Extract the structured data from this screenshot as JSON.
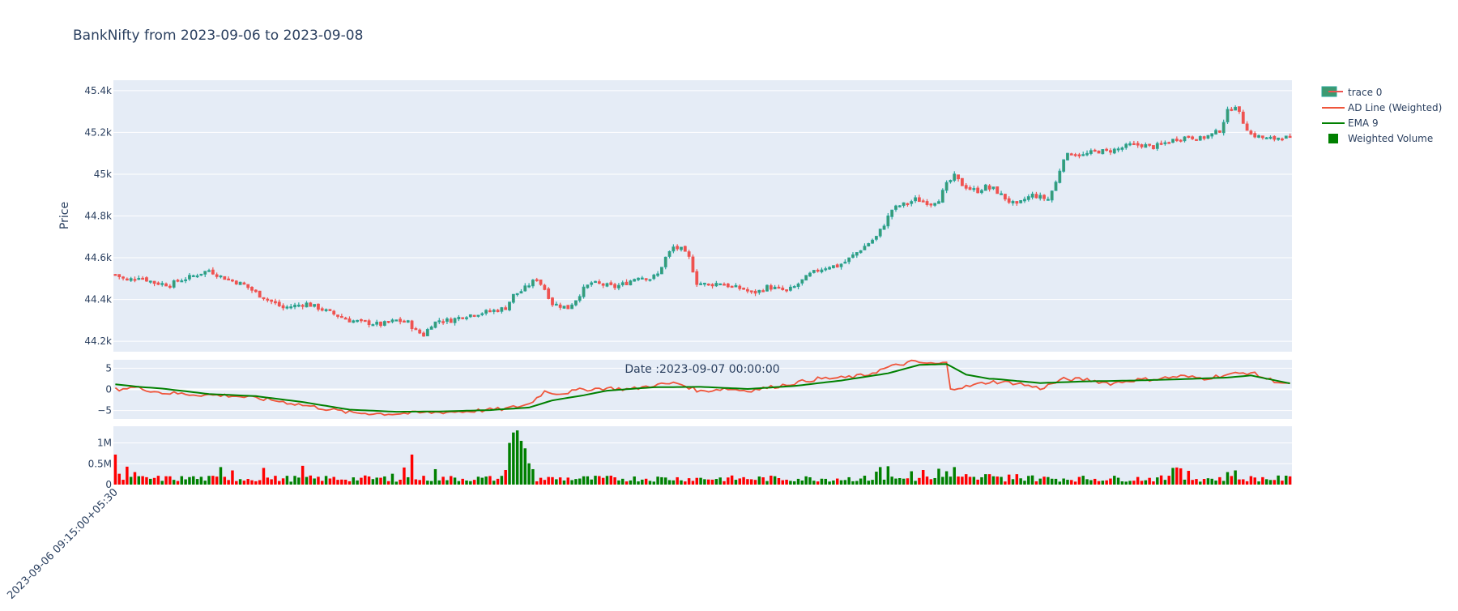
{
  "title": "BankNifty from 2023-09-06 to 2023-09-08",
  "annotation": "Date :2023-09-07 00:00:00",
  "colors": {
    "up": "#26a69a",
    "up_fill": "#3d9970",
    "down": "#ef5350",
    "ad_line": "#ef553b",
    "ema": "#008000",
    "vol_up": "#008000",
    "vol_down": "#ff0000",
    "plot_bg": "#e5ecf6",
    "grid": "#ffffff",
    "text": "#2a3f5f"
  },
  "legend": {
    "position": "top-right",
    "items": [
      {
        "label": "trace 0",
        "kind": "candle"
      },
      {
        "label": "AD Line (Weighted)",
        "kind": "line-red"
      },
      {
        "label": "EMA 9",
        "kind": "line-green"
      },
      {
        "label": "Weighted Volume",
        "kind": "square-green"
      }
    ]
  },
  "chart_data": {
    "type": "candlestick",
    "title": "BankNifty from 2023-09-06 to 2023-09-08",
    "ylabel": "Price",
    "x_tick_label": "2023-09-06 09:15:00+05:30",
    "n_bars": 225,
    "price_ylim": [
      44150,
      45450
    ],
    "price_ticks": [
      {
        "v": 44200,
        "label": "44.2k"
      },
      {
        "v": 44400,
        "label": "44.4k"
      },
      {
        "v": 44600,
        "label": "44.6k"
      },
      {
        "v": 44800,
        "label": "44.8k"
      },
      {
        "v": 45000,
        "label": "45k"
      },
      {
        "v": 45200,
        "label": "45.2k"
      },
      {
        "v": 45400,
        "label": "45.4k"
      }
    ],
    "ad_ylim": [
      -7,
      7
    ],
    "ad_ticks": [
      {
        "v": 5,
        "label": "5"
      },
      {
        "v": 0,
        "label": "0"
      },
      {
        "v": -5,
        "label": "−5"
      }
    ],
    "vol_ylim": [
      0,
      1400000
    ],
    "vol_ticks": [
      {
        "v": 0,
        "label": "0"
      },
      {
        "v": 500000,
        "label": "0.5M"
      },
      {
        "v": 1000000,
        "label": "1M"
      }
    ],
    "close_anchors": [
      [
        0,
        44520
      ],
      [
        3,
        44490
      ],
      [
        6,
        44510
      ],
      [
        10,
        44480
      ],
      [
        14,
        44470
      ],
      [
        16,
        44490
      ],
      [
        18,
        44500
      ],
      [
        21,
        44520
      ],
      [
        24,
        44540
      ],
      [
        27,
        44510
      ],
      [
        30,
        44490
      ],
      [
        33,
        44470
      ],
      [
        37,
        44420
      ],
      [
        40,
        44390
      ],
      [
        43,
        44360
      ],
      [
        46,
        44370
      ],
      [
        49,
        44380
      ],
      [
        52,
        44360
      ],
      [
        56,
        44330
      ],
      [
        60,
        44300
      ],
      [
        64,
        44290
      ],
      [
        68,
        44280
      ],
      [
        72,
        44300
      ],
      [
        75,
        44290
      ],
      [
        77,
        44250
      ],
      [
        79,
        44230
      ],
      [
        81,
        44280
      ],
      [
        83,
        44300
      ],
      [
        86,
        44300
      ],
      [
        89,
        44320
      ],
      [
        92,
        44330
      ],
      [
        95,
        44340
      ],
      [
        98,
        44350
      ],
      [
        100,
        44360
      ],
      [
        102,
        44420
      ],
      [
        104,
        44440
      ],
      [
        106,
        44470
      ],
      [
        108,
        44500
      ],
      [
        110,
        44450
      ],
      [
        112,
        44380
      ],
      [
        114,
        44370
      ],
      [
        116,
        44360
      ],
      [
        118,
        44400
      ],
      [
        120,
        44450
      ],
      [
        122,
        44480
      ],
      [
        125,
        44470
      ],
      [
        128,
        44460
      ],
      [
        131,
        44480
      ],
      [
        134,
        44510
      ],
      [
        137,
        44500
      ],
      [
        139,
        44520
      ],
      [
        141,
        44600
      ],
      [
        143,
        44650
      ],
      [
        145,
        44640
      ],
      [
        147,
        44600
      ],
      [
        149,
        44480
      ],
      [
        152,
        44470
      ],
      [
        155,
        44480
      ],
      [
        158,
        44460
      ],
      [
        161,
        44450
      ],
      [
        163,
        44430
      ],
      [
        165,
        44440
      ],
      [
        167,
        44460
      ],
      [
        170,
        44450
      ],
      [
        172,
        44440
      ],
      [
        174,
        44460
      ],
      [
        176,
        44490
      ],
      [
        178,
        44520
      ],
      [
        180,
        44540
      ],
      [
        183,
        44560
      ],
      [
        185,
        44560
      ],
      [
        187,
        44580
      ],
      [
        189,
        44610
      ],
      [
        191,
        44640
      ],
      [
        193,
        44670
      ],
      [
        195,
        44700
      ],
      [
        197,
        44760
      ],
      [
        199,
        44830
      ],
      [
        201,
        44850
      ],
      [
        203,
        44860
      ],
      [
        205,
        44880
      ],
      [
        207,
        44870
      ],
      [
        209,
        44860
      ],
      [
        211,
        44880
      ],
      [
        213,
        44950
      ],
      [
        215,
        44990
      ],
      [
        217,
        44950
      ],
      [
        219,
        44930
      ],
      [
        221,
        44920
      ],
      [
        223,
        44940
      ],
      [
        224,
        44930
      ]
    ],
    "close_anchors_day3": [
      [
        0,
        44930
      ],
      [
        2,
        44900
      ],
      [
        4,
        44870
      ],
      [
        6,
        44850
      ],
      [
        8,
        44880
      ],
      [
        10,
        44900
      ],
      [
        12,
        44890
      ],
      [
        14,
        44880
      ],
      [
        16,
        44960
      ],
      [
        18,
        45080
      ],
      [
        20,
        45100
      ],
      [
        23,
        45090
      ],
      [
        26,
        45110
      ],
      [
        29,
        45110
      ],
      [
        32,
        45120
      ],
      [
        35,
        45140
      ],
      [
        38,
        45140
      ],
      [
        41,
        45130
      ],
      [
        44,
        45150
      ],
      [
        47,
        45170
      ],
      [
        50,
        45180
      ],
      [
        53,
        45170
      ],
      [
        56,
        45190
      ],
      [
        58,
        45210
      ],
      [
        60,
        45300
      ],
      [
        62,
        45330
      ],
      [
        64,
        45250
      ],
      [
        66,
        45190
      ],
      [
        68,
        45180
      ],
      [
        70,
        45170
      ],
      [
        72,
        45170
      ],
      [
        74,
        45180
      ],
      [
        76,
        45170
      ]
    ],
    "ad_anchors": [
      [
        0,
        0
      ],
      [
        5,
        0.5
      ],
      [
        12,
        -0.8
      ],
      [
        20,
        -1.2
      ],
      [
        30,
        -1.5
      ],
      [
        40,
        -2.5
      ],
      [
        50,
        -4
      ],
      [
        60,
        -5.5
      ],
      [
        70,
        -5.8
      ],
      [
        80,
        -5.5
      ],
      [
        90,
        -5.2
      ],
      [
        100,
        -4.6
      ],
      [
        106,
        -3.5
      ],
      [
        110,
        -0.5
      ],
      [
        114,
        -1
      ],
      [
        120,
        0
      ],
      [
        126,
        0.3
      ],
      [
        132,
        0
      ],
      [
        138,
        1
      ],
      [
        144,
        1.5
      ],
      [
        150,
        -0.5
      ],
      [
        156,
        0.2
      ],
      [
        162,
        -0.3
      ],
      [
        168,
        0.5
      ],
      [
        174,
        1.5
      ],
      [
        180,
        2.5
      ],
      [
        186,
        2.7
      ],
      [
        192,
        3.3
      ],
      [
        198,
        5.2
      ],
      [
        204,
        6.5
      ],
      [
        210,
        6
      ],
      [
        213,
        6.2
      ],
      [
        214,
        0.3
      ],
      [
        218,
        0.6
      ],
      [
        224,
        1.8
      ]
    ],
    "ad_anchors_day3": [
      [
        0,
        1.8
      ],
      [
        6,
        1.5
      ],
      [
        12,
        0.2
      ],
      [
        18,
        2.4
      ],
      [
        24,
        2.3
      ],
      [
        30,
        1.4
      ],
      [
        36,
        2.2
      ],
      [
        42,
        2.5
      ],
      [
        48,
        3.1
      ],
      [
        54,
        2.6
      ],
      [
        60,
        3.5
      ],
      [
        66,
        4
      ],
      [
        70,
        2.5
      ],
      [
        76,
        1.1
      ]
    ],
    "ema_anchors": [
      [
        0,
        1.2
      ],
      [
        6,
        0.6
      ],
      [
        12,
        0.2
      ],
      [
        24,
        -1.1
      ],
      [
        36,
        -1.6
      ],
      [
        48,
        -3
      ],
      [
        60,
        -4.8
      ],
      [
        72,
        -5.3
      ],
      [
        84,
        -5.2
      ],
      [
        96,
        -4.9
      ],
      [
        106,
        -4.3
      ],
      [
        112,
        -2.6
      ],
      [
        120,
        -1.4
      ],
      [
        126,
        -0.3
      ],
      [
        138,
        0.5
      ],
      [
        150,
        0.6
      ],
      [
        162,
        0.1
      ],
      [
        174,
        0.8
      ],
      [
        186,
        2.1
      ],
      [
        198,
        3.8
      ],
      [
        206,
        5.8
      ],
      [
        213,
        6
      ],
      [
        218,
        3.5
      ],
      [
        224,
        2.5
      ]
    ],
    "ema_anchors_day3": [
      [
        0,
        2.5
      ],
      [
        12,
        1.5
      ],
      [
        24,
        1.9
      ],
      [
        36,
        2.1
      ],
      [
        48,
        2.4
      ],
      [
        60,
        2.8
      ],
      [
        66,
        3.3
      ],
      [
        76,
        1.4
      ]
    ],
    "volume_pattern": "high near 09:15 each session, spike ~1.3M around index 102-104",
    "volume_spikes": [
      [
        0,
        720000
      ],
      [
        1,
        260000
      ],
      [
        3,
        430000
      ],
      [
        5,
        300000
      ],
      [
        20,
        200000
      ],
      [
        27,
        420000
      ],
      [
        30,
        340000
      ],
      [
        38,
        400000
      ],
      [
        48,
        450000
      ],
      [
        71,
        260000
      ],
      [
        74,
        410000
      ],
      [
        76,
        720000
      ],
      [
        82,
        370000
      ],
      [
        100,
        350000
      ],
      [
        101,
        1000000
      ],
      [
        102,
        1250000
      ],
      [
        103,
        1300000
      ],
      [
        104,
        1050000
      ],
      [
        105,
        870000
      ],
      [
        106,
        510000
      ],
      [
        107,
        370000
      ],
      [
        195,
        310000
      ],
      [
        196,
        420000
      ],
      [
        198,
        440000
      ],
      [
        204,
        320000
      ],
      [
        207,
        350000
      ],
      [
        211,
        380000
      ],
      [
        213,
        320000
      ],
      [
        215,
        420000
      ],
      [
        218,
        250000
      ],
      [
        223,
        250000
      ],
      [
        224,
        250000
      ]
    ],
    "volume_spikes_day3": [
      [
        0,
        200000
      ],
      [
        4,
        240000
      ],
      [
        6,
        250000
      ],
      [
        10,
        220000
      ],
      [
        46,
        400000
      ],
      [
        47,
        410000
      ],
      [
        48,
        390000
      ],
      [
        50,
        330000
      ],
      [
        60,
        300000
      ],
      [
        62,
        340000
      ]
    ]
  }
}
